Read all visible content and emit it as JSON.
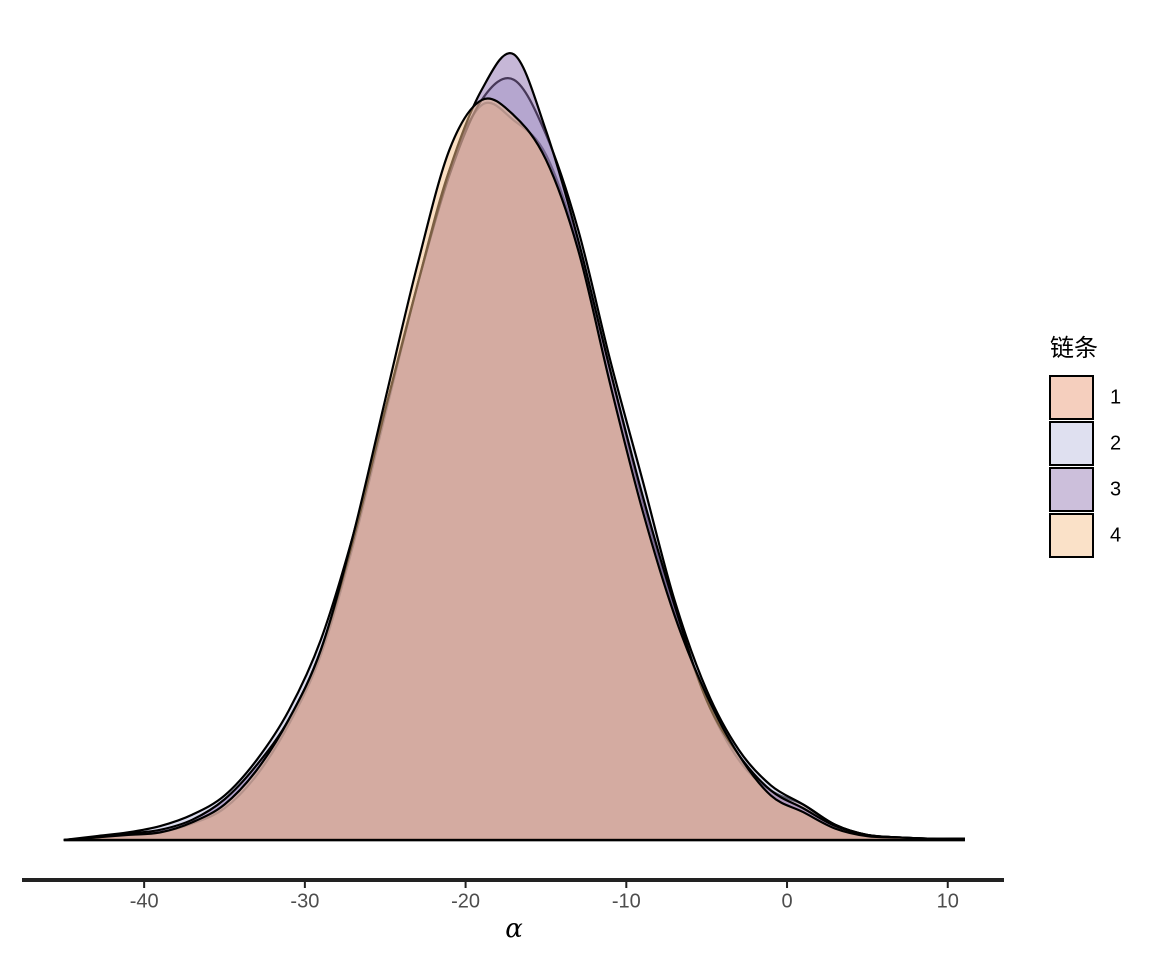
{
  "chart_data": {
    "type": "density",
    "xlabel": "α",
    "legend_title": "链条",
    "legend_position": "right",
    "x": [
      -45,
      -43,
      -41,
      -39,
      -37,
      -35,
      -33,
      -31,
      -29,
      -27,
      -25,
      -23,
      -21,
      -19,
      -17,
      -15,
      -13,
      -11,
      -9,
      -7,
      -5,
      -3,
      -1,
      1,
      3,
      5,
      7,
      9,
      11
    ],
    "series": [
      {
        "name": "1",
        "color": "#e8956f",
        "values": [
          0,
          0.0002,
          0.0004,
          0.0006,
          0.0013,
          0.0025,
          0.0051,
          0.0091,
          0.0146,
          0.0232,
          0.0335,
          0.0437,
          0.0528,
          0.0579,
          0.0567,
          0.054,
          0.0469,
          0.037,
          0.0268,
          0.0181,
          0.011,
          0.0063,
          0.0039,
          0.0028,
          0.0012,
          0.0004,
          0.0002,
          0.0001,
          0.0001
        ]
      },
      {
        "name": "2",
        "color": "#b9bade",
        "values": [
          0,
          0.0003,
          0.0006,
          0.0011,
          0.002,
          0.0035,
          0.0063,
          0.0102,
          0.0158,
          0.024,
          0.0339,
          0.0437,
          0.0524,
          0.0583,
          0.0599,
          0.0556,
          0.0481,
          0.0378,
          0.0284,
          0.0189,
          0.0118,
          0.0071,
          0.0043,
          0.0028,
          0.0012,
          0.0004,
          0.0002,
          0.0001,
          0.0001
        ]
      },
      {
        "name": "3",
        "color": "#8e70b0",
        "values": [
          0,
          0.0002,
          0.0005,
          0.0008,
          0.0016,
          0.0032,
          0.0059,
          0.0095,
          0.015,
          0.0236,
          0.0339,
          0.0437,
          0.0528,
          0.0591,
          0.0619,
          0.0559,
          0.0473,
          0.037,
          0.0272,
          0.0185,
          0.011,
          0.0067,
          0.0039,
          0.0025,
          0.0011,
          0.0004,
          0.0002,
          0.0001,
          0.0001
        ]
      },
      {
        "name": "4",
        "color": "#f5bd85",
        "values": [
          0,
          0.0002,
          0.0004,
          0.0006,
          0.0014,
          0.0028,
          0.0055,
          0.0095,
          0.015,
          0.024,
          0.0347,
          0.0453,
          0.0544,
          0.0583,
          0.0571,
          0.0536,
          0.0465,
          0.0359,
          0.026,
          0.0177,
          0.0114,
          0.0067,
          0.0035,
          0.0022,
          0.0009,
          0.0003,
          0.0002,
          0.0001,
          0.0001
        ]
      }
    ],
    "xlim": [
      -47.6,
      13.5
    ],
    "xticks": [
      -40,
      -30,
      -20,
      -10,
      0,
      10
    ],
    "ylim": [
      0,
      0.065
    ]
  }
}
